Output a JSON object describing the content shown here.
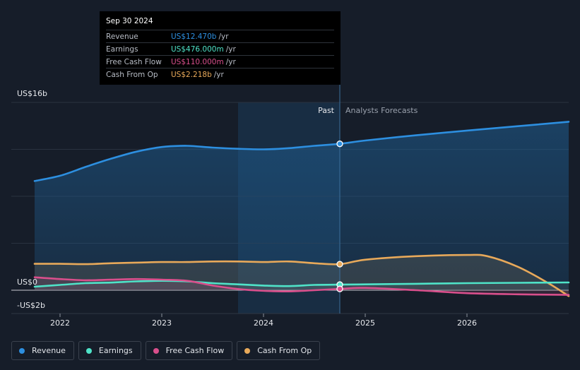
{
  "chart_data": {
    "type": "line",
    "title": "",
    "ylim": [
      -2,
      16
    ],
    "x_ticks": [
      2022,
      2023,
      2024,
      2025,
      2026
    ],
    "x_tick_labels": [
      "2022",
      "2023",
      "2024",
      "2025",
      "2026"
    ],
    "xlim": [
      2021.7,
      2027.0
    ],
    "y_axis_labels": [
      {
        "value": 16,
        "text": "US$16b"
      },
      {
        "value": 0,
        "text": "US$0"
      },
      {
        "value": -2,
        "text": "-US$2b"
      }
    ],
    "divider_x": 2024.75,
    "highlight_start": 2023.75,
    "past_label": "Past",
    "forecast_label": "Analysts Forecasts",
    "series": [
      {
        "name": "Revenue",
        "color": "#2d8fe0",
        "x": [
          2021.75,
          2022.0,
          2022.25,
          2022.5,
          2022.75,
          2023.0,
          2023.25,
          2023.5,
          2023.75,
          2024.0,
          2024.25,
          2024.5,
          2024.75,
          2025.0,
          2025.5,
          2026.0,
          2026.5,
          2027.0
        ],
        "values": [
          9.3,
          9.75,
          10.5,
          11.2,
          11.8,
          12.2,
          12.3,
          12.15,
          12.05,
          12.0,
          12.1,
          12.3,
          12.47,
          12.75,
          13.2,
          13.6,
          13.97,
          14.35
        ]
      },
      {
        "name": "Earnings",
        "color": "#4fe3c8",
        "x": [
          2021.75,
          2022.0,
          2022.25,
          2022.5,
          2022.75,
          2023.0,
          2023.25,
          2023.5,
          2023.75,
          2024.0,
          2024.25,
          2024.5,
          2024.75,
          2025.0,
          2025.5,
          2026.0,
          2026.5,
          2027.0
        ],
        "values": [
          0.3,
          0.45,
          0.6,
          0.65,
          0.75,
          0.8,
          0.75,
          0.6,
          0.5,
          0.4,
          0.35,
          0.45,
          0.476,
          0.5,
          0.55,
          0.6,
          0.63,
          0.66
        ]
      },
      {
        "name": "Free Cash Flow",
        "color": "#d94f8c",
        "x": [
          2021.75,
          2022.0,
          2022.25,
          2022.5,
          2022.75,
          2023.0,
          2023.25,
          2023.5,
          2023.75,
          2024.0,
          2024.25,
          2024.5,
          2024.75,
          2025.0,
          2025.5,
          2026.0,
          2026.5,
          2027.0
        ],
        "values": [
          1.1,
          0.95,
          0.85,
          0.9,
          0.95,
          0.9,
          0.8,
          0.4,
          0.1,
          -0.05,
          -0.1,
          0.0,
          0.11,
          0.2,
          0.0,
          -0.25,
          -0.35,
          -0.4
        ]
      },
      {
        "name": "Cash From Op",
        "color": "#e8a95a",
        "x": [
          2021.75,
          2022.0,
          2022.25,
          2022.5,
          2022.75,
          2023.0,
          2023.25,
          2023.5,
          2023.75,
          2024.0,
          2024.25,
          2024.5,
          2024.75,
          2025.0,
          2025.5,
          2026.0,
          2026.2,
          2026.5,
          2026.8,
          2027.0
        ],
        "values": [
          2.25,
          2.25,
          2.22,
          2.3,
          2.35,
          2.4,
          2.4,
          2.45,
          2.45,
          2.4,
          2.45,
          2.3,
          2.218,
          2.6,
          2.9,
          3.0,
          2.9,
          2.0,
          0.6,
          -0.5
        ]
      }
    ]
  },
  "tooltip": {
    "date": "Sep 30 2024",
    "rows": [
      {
        "label": "Revenue",
        "value": "US$12.470b",
        "unit": "/yr",
        "color": "#2d8fe0"
      },
      {
        "label": "Earnings",
        "value": "US$476.000m",
        "unit": "/yr",
        "color": "#4fe3c8"
      },
      {
        "label": "Free Cash Flow",
        "value": "US$110.000m",
        "unit": "/yr",
        "color": "#d94f8c"
      },
      {
        "label": "Cash From Op",
        "value": "US$2.218b",
        "unit": "/yr",
        "color": "#e8a95a"
      }
    ]
  },
  "legend": [
    {
      "label": "Revenue",
      "color": "#2d8fe0"
    },
    {
      "label": "Earnings",
      "color": "#4fe3c8"
    },
    {
      "label": "Free Cash Flow",
      "color": "#d94f8c"
    },
    {
      "label": "Cash From Op",
      "color": "#e8a95a"
    }
  ]
}
